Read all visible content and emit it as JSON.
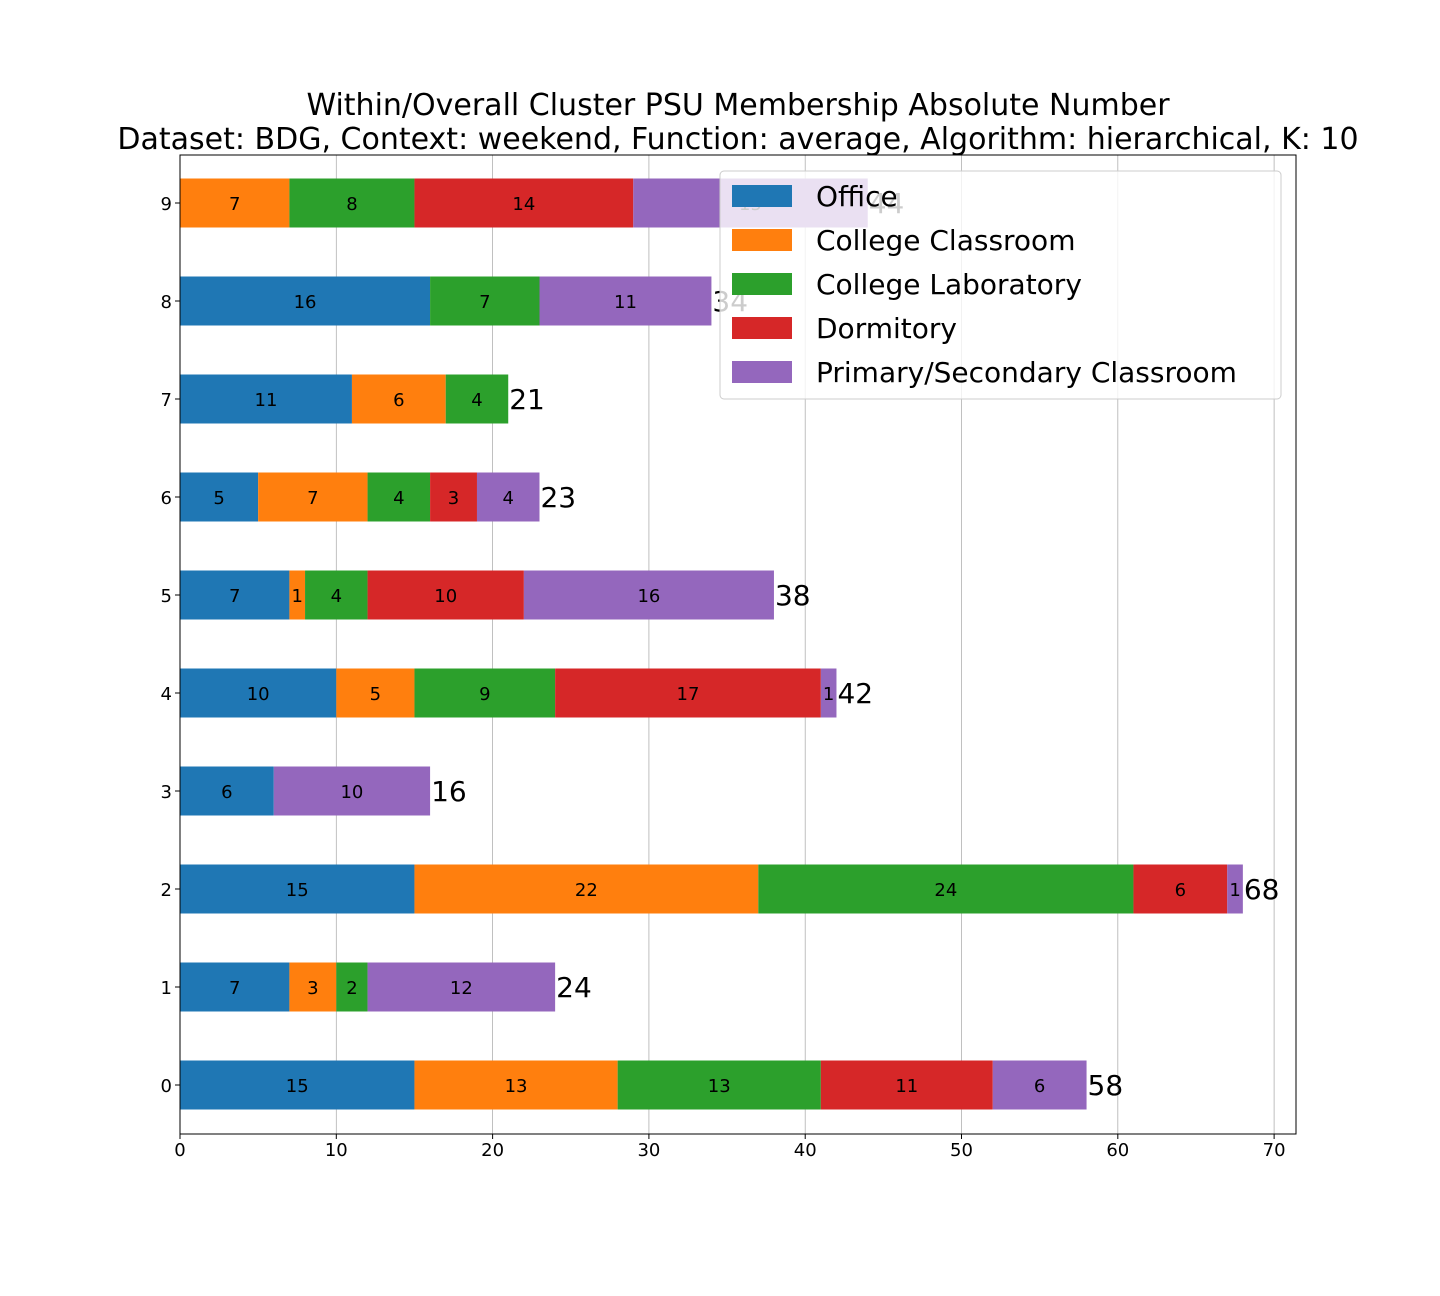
{
  "chart_data": {
    "type": "bar",
    "orientation": "horizontal",
    "stacked": true,
    "title": "Within/Overall Cluster PSU Membership Absolute Number",
    "subtitle": "Dataset: BDG, Context: weekend, Function: average, Algorithm: hierarchical, K: 10",
    "xlabel": "",
    "ylabel": "",
    "categories": [
      "0",
      "1",
      "2",
      "3",
      "4",
      "5",
      "6",
      "7",
      "8",
      "9"
    ],
    "xlim": [
      0,
      71.4
    ],
    "xticks": [
      0,
      10,
      20,
      30,
      40,
      50,
      60,
      70
    ],
    "grid": "vertical",
    "legend_position": "top-right",
    "series": [
      {
        "name": "Office",
        "color": "#1f77b4",
        "values": [
          15,
          7,
          15,
          6,
          10,
          7,
          5,
          11,
          16,
          0
        ]
      },
      {
        "name": "College Classroom",
        "color": "#ff7f0e",
        "values": [
          13,
          3,
          22,
          0,
          5,
          1,
          7,
          6,
          0,
          7
        ]
      },
      {
        "name": "College Laboratory",
        "color": "#2ca02c",
        "values": [
          13,
          2,
          24,
          0,
          9,
          4,
          4,
          4,
          7,
          8
        ]
      },
      {
        "name": "Dormitory",
        "color": "#d62728",
        "values": [
          11,
          0,
          6,
          0,
          17,
          10,
          3,
          0,
          0,
          14
        ]
      },
      {
        "name": "Primary/Secondary Classroom",
        "color": "#9467bd",
        "values": [
          6,
          12,
          1,
          10,
          1,
          16,
          4,
          0,
          11,
          15
        ]
      }
    ],
    "totals": [
      58,
      24,
      68,
      16,
      42,
      38,
      23,
      21,
      34,
      44
    ]
  }
}
